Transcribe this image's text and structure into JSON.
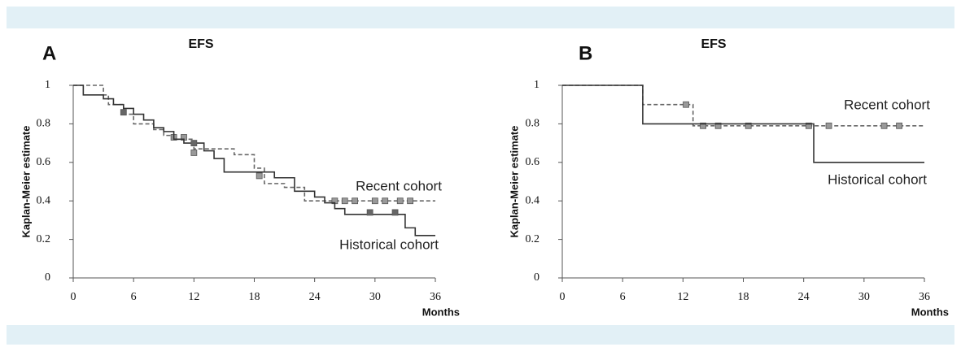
{
  "chart_data": [
    {
      "type": "step",
      "panel": "A",
      "title": "EFS",
      "x_label": "Months",
      "y_label": "Kaplan-Meier estimate",
      "xlim": [
        0,
        36
      ],
      "xticks": [
        0,
        6,
        12,
        18,
        24,
        30,
        36
      ],
      "ylim": [
        0,
        1
      ],
      "yticks": [
        0,
        0.2,
        0.4,
        0.6,
        0.8,
        1
      ],
      "series": [
        {
          "name": "Recent cohort",
          "color": "#666666",
          "dashed": true,
          "x": [
            0,
            3,
            3.5,
            5,
            6,
            8,
            9,
            10,
            12,
            16,
            18,
            19,
            21,
            23,
            36
          ],
          "values": [
            1,
            0.95,
            0.9,
            0.85,
            0.8,
            0.77,
            0.74,
            0.72,
            0.67,
            0.64,
            0.57,
            0.49,
            0.47,
            0.4,
            0.4
          ],
          "markers": {
            "x": [
              10,
              11,
              12,
              18.5,
              26,
              27,
              28,
              30,
              31,
              32.5,
              33.5
            ],
            "values": [
              0.73,
              0.73,
              0.65,
              0.53,
              0.4,
              0.4,
              0.4,
              0.4,
              0.4,
              0.4,
              0.4
            ]
          }
        },
        {
          "name": "Historical cohort",
          "color": "#333333",
          "dashed": false,
          "x": [
            0,
            1,
            3,
            4,
            5,
            6,
            7,
            8,
            9,
            10,
            11,
            13,
            14,
            15,
            20,
            22,
            24,
            25,
            26,
            27,
            33,
            34,
            36
          ],
          "values": [
            1,
            0.95,
            0.93,
            0.9,
            0.88,
            0.85,
            0.82,
            0.78,
            0.76,
            0.72,
            0.7,
            0.66,
            0.62,
            0.55,
            0.52,
            0.45,
            0.42,
            0.39,
            0.36,
            0.33,
            0.26,
            0.22,
            0.22
          ],
          "markers": {
            "x": [
              5,
              12,
              29.5,
              32
            ],
            "values": [
              0.86,
              0.7,
              0.34,
              0.34
            ]
          }
        }
      ]
    },
    {
      "type": "step",
      "panel": "B",
      "title": "EFS",
      "x_label": "Months",
      "y_label": "Kaplan-Meier estimate",
      "xlim": [
        0,
        36
      ],
      "xticks": [
        0,
        6,
        12,
        18,
        24,
        30,
        36
      ],
      "ylim": [
        0,
        1
      ],
      "yticks": [
        0,
        0.2,
        0.4,
        0.6,
        0.8,
        1
      ],
      "series": [
        {
          "name": "Recent cohort",
          "color": "#666666",
          "dashed": true,
          "x": [
            0,
            8,
            13,
            36
          ],
          "values": [
            1,
            0.9,
            0.79,
            0.79
          ],
          "markers": {
            "x": [
              12.3,
              14,
              15.5,
              18.5,
              24.5,
              26.5,
              32,
              33.5
            ],
            "values": [
              0.9,
              0.79,
              0.79,
              0.79,
              0.79,
              0.79,
              0.79,
              0.79
            ]
          }
        },
        {
          "name": "Historical cohort",
          "color": "#333333",
          "dashed": false,
          "x": [
            0,
            8,
            25,
            36
          ],
          "values": [
            1,
            0.8,
            0.6,
            0.6
          ],
          "markers": {
            "x": [],
            "values": []
          }
        }
      ]
    }
  ]
}
